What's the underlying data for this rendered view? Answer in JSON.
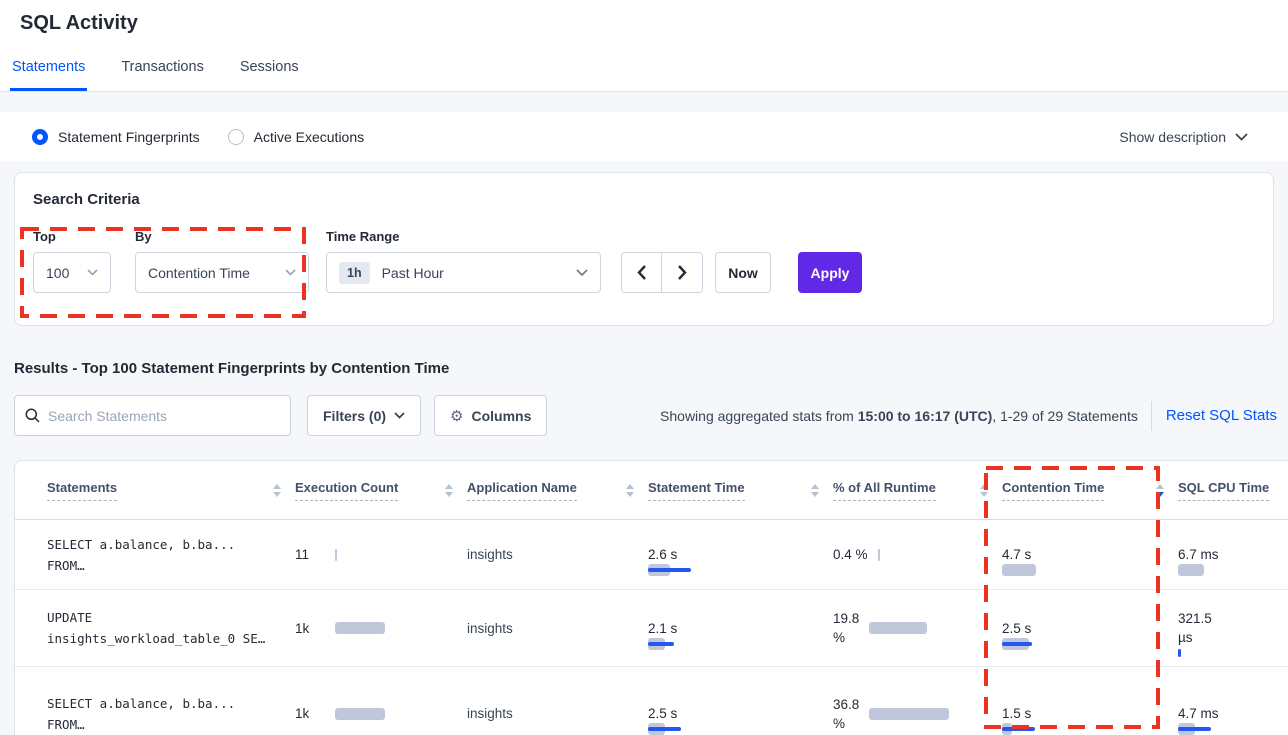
{
  "page": {
    "title": "SQL Activity"
  },
  "tabs": [
    {
      "label": "Statements",
      "active": true
    },
    {
      "label": "Transactions",
      "active": false
    },
    {
      "label": "Sessions",
      "active": false
    }
  ],
  "view_toggle": {
    "options": [
      {
        "label": "Statement Fingerprints",
        "selected": true
      },
      {
        "label": "Active Executions",
        "selected": false
      }
    ],
    "show_description": "Show description"
  },
  "search_criteria": {
    "heading": "Search Criteria",
    "top": {
      "label": "Top",
      "value": "100"
    },
    "by": {
      "label": "By",
      "value": "Contention Time"
    },
    "time_range": {
      "label": "Time Range",
      "badge": "1h",
      "value": "Past Hour"
    },
    "now_label": "Now",
    "apply_label": "Apply"
  },
  "results": {
    "heading": "Results - Top 100 Statement Fingerprints by Contention Time",
    "search_placeholder": "Search Statements",
    "filters_label": "Filters (0)",
    "columns_label": "Columns",
    "stats_prefix": "Showing aggregated stats from ",
    "stats_bold": "15:00 to 16:17 (UTC)",
    "stats_suffix": ", 1-29 of 29 Statements",
    "reset_link": "Reset SQL Stats"
  },
  "table": {
    "columns": [
      {
        "label": "Statements",
        "sort": "none"
      },
      {
        "label": "Execution Count",
        "sort": "none"
      },
      {
        "label": "Application Name",
        "sort": "none"
      },
      {
        "label": "Statement Time",
        "sort": "none"
      },
      {
        "label": "% of All Runtime",
        "sort": "none"
      },
      {
        "label": "Contention Time",
        "sort": "desc"
      },
      {
        "label": "SQL CPU Time",
        "sort": "hidden"
      }
    ],
    "rows": [
      {
        "statement_lines": [
          "SELECT a.balance, b.ba...",
          "FROM…"
        ],
        "execution_count": "11",
        "application": "insights",
        "statement_time": "2.6 s",
        "runtime_pct_lines": [
          "0.4 %"
        ],
        "contention_time": "4.7 s",
        "sql_cpu_lines": [
          "6.7 ms"
        ],
        "bars": {
          "exec": {
            "gray": 2,
            "blue": 0
          },
          "stmt": {
            "gray": 22,
            "blue": 43
          },
          "pct": {
            "gray": 2,
            "blue": 0
          },
          "cont": {
            "gray": 34,
            "blue": 0
          },
          "cpu": {
            "gray": 26,
            "blue": 0
          }
        }
      },
      {
        "statement_lines": [
          "UPDATE",
          "insights_workload_table_0 SE…"
        ],
        "execution_count": "1k",
        "application": "insights",
        "statement_time": "2.1 s",
        "runtime_pct_lines": [
          "19.8",
          "%"
        ],
        "contention_time": "2.5 s",
        "sql_cpu_lines": [
          "321.5",
          "µs"
        ],
        "bars": {
          "exec": {
            "gray": 50,
            "blue": 0
          },
          "stmt": {
            "gray": 17,
            "blue": 26
          },
          "pct": {
            "gray": 58,
            "blue": 0
          },
          "cont": {
            "gray": 27,
            "blue": 30
          },
          "cpu": {
            "gray": 0,
            "blue": 3
          }
        }
      },
      {
        "statement_lines": [
          "SELECT a.balance, b.ba...",
          "FROM…"
        ],
        "execution_count": "1k",
        "application": "insights",
        "statement_time": "2.5 s",
        "runtime_pct_lines": [
          "36.8",
          "%"
        ],
        "contention_time": "1.5 s",
        "sql_cpu_lines": [
          "4.7 ms"
        ],
        "bars": {
          "exec": {
            "gray": 50,
            "blue": 0
          },
          "stmt": {
            "gray": 17,
            "blue": 33
          },
          "pct": {
            "gray": 80,
            "blue": 0
          },
          "cont": {
            "gray": 10,
            "blue": 33
          },
          "cpu": {
            "gray": 17,
            "blue": 33
          }
        }
      }
    ]
  },
  "colors": {
    "accent_blue": "#0055ff",
    "apply_purple": "#6128e6",
    "bar_gray": "#c0c7db",
    "bar_blue": "#2457f0",
    "annotation_red": "#ea3323"
  },
  "icons": {
    "search": "magnifier",
    "gear": "gear",
    "chevron_down": "chevron-down",
    "prev": "chevron-left",
    "next": "chevron-right",
    "sort": "up-down-triangles"
  }
}
